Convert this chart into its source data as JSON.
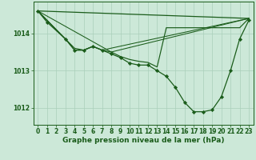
{
  "bg_color": "#cce8d8",
  "grid_color": "#aacfba",
  "line_color": "#1a5c1a",
  "xlabel": "Graphe pression niveau de la mer (hPa)",
  "xlabel_fontsize": 6.5,
  "tick_fontsize": 5.5,
  "xlim": [
    -0.5,
    23.5
  ],
  "ylim": [
    1011.55,
    1014.85
  ],
  "yticks": [
    1012,
    1013,
    1014
  ],
  "xticks": [
    0,
    1,
    2,
    3,
    4,
    5,
    6,
    7,
    8,
    9,
    10,
    11,
    12,
    13,
    14,
    15,
    16,
    17,
    18,
    19,
    20,
    21,
    22,
    23
  ],
  "series": [
    {
      "x": [
        0,
        1,
        3,
        4,
        5,
        6,
        7,
        8,
        9,
        10,
        11,
        12,
        13,
        14,
        15,
        16,
        17,
        18,
        19,
        20,
        21,
        22,
        23
      ],
      "y": [
        1014.6,
        1014.3,
        1013.85,
        1013.55,
        1013.55,
        1013.65,
        1013.55,
        1013.45,
        1013.35,
        1013.2,
        1013.15,
        1013.15,
        1013.0,
        1012.85,
        1012.55,
        1012.15,
        1011.9,
        1011.9,
        1011.95,
        1012.3,
        1013.0,
        1013.85,
        1014.35
      ],
      "marker": "D",
      "markersize": 2.2,
      "linewidth": 0.9
    },
    {
      "x": [
        0,
        23
      ],
      "y": [
        1014.6,
        1014.4
      ],
      "marker": null,
      "markersize": 0,
      "linewidth": 0.9
    },
    {
      "x": [
        0,
        3,
        4,
        5,
        6,
        7,
        8,
        9,
        10,
        11,
        12,
        13,
        14,
        15,
        16,
        17,
        18,
        19,
        20,
        21,
        22,
        23
      ],
      "y": [
        1014.6,
        1013.85,
        1013.6,
        1013.55,
        1013.65,
        1013.55,
        1013.5,
        1013.38,
        1013.3,
        1013.25,
        1013.22,
        1013.1,
        1014.15,
        1014.15,
        1014.15,
        1014.15,
        1014.15,
        1014.15,
        1014.15,
        1014.15,
        1014.15,
        1014.4
      ],
      "marker": null,
      "markersize": 0,
      "linewidth": 0.85
    },
    {
      "x": [
        0,
        8,
        23
      ],
      "y": [
        1014.6,
        1013.5,
        1014.4
      ],
      "marker": null,
      "markersize": 0,
      "linewidth": 0.75
    },
    {
      "x": [
        0,
        3,
        4,
        5,
        6,
        7,
        23
      ],
      "y": [
        1014.6,
        1013.85,
        1013.55,
        1013.55,
        1013.65,
        1013.55,
        1014.4
      ],
      "marker": null,
      "markersize": 0,
      "linewidth": 0.75
    }
  ]
}
